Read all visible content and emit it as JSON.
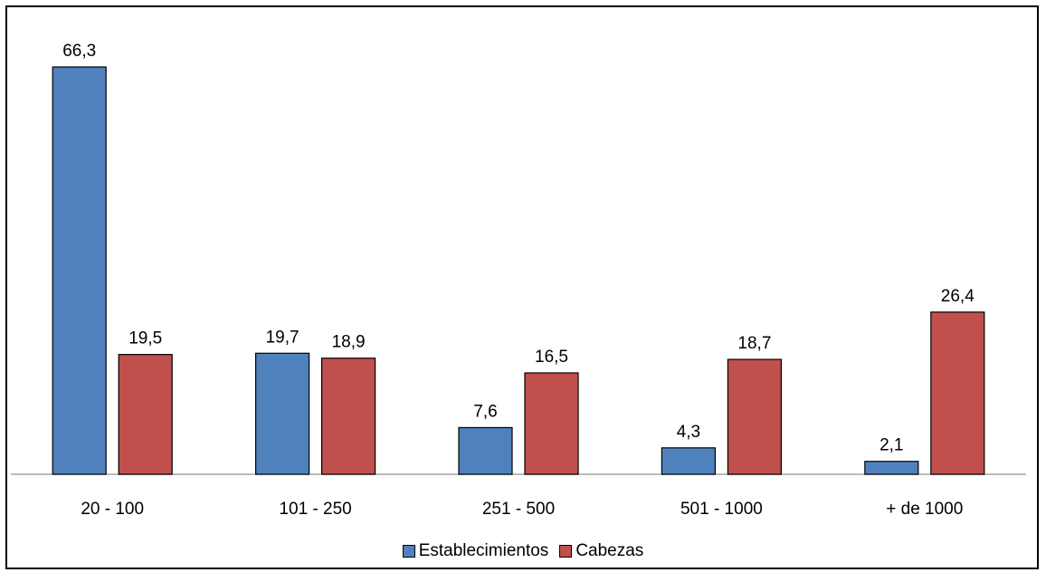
{
  "chart_data": {
    "type": "bar",
    "categories": [
      "20 - 100",
      "101 - 250",
      "251 - 500",
      "501 - 1000",
      "+ de 1000"
    ],
    "series": [
      {
        "name": "Establecimientos",
        "color": "#4F81BD",
        "values": [
          66.3,
          19.7,
          7.6,
          4.3,
          2.1
        ],
        "labels": [
          "66,3",
          "19,7",
          "7,6",
          "4,3",
          "2,1"
        ]
      },
      {
        "name": "Cabezas",
        "color": "#C0504D",
        "values": [
          19.5,
          18.9,
          16.5,
          18.7,
          26.4
        ],
        "labels": [
          "19,5",
          "18,9",
          "16,5",
          "18,7",
          "26,4"
        ]
      }
    ],
    "ylim": [
      0,
      66.3
    ],
    "legend_position": "bottom",
    "grid": false
  }
}
